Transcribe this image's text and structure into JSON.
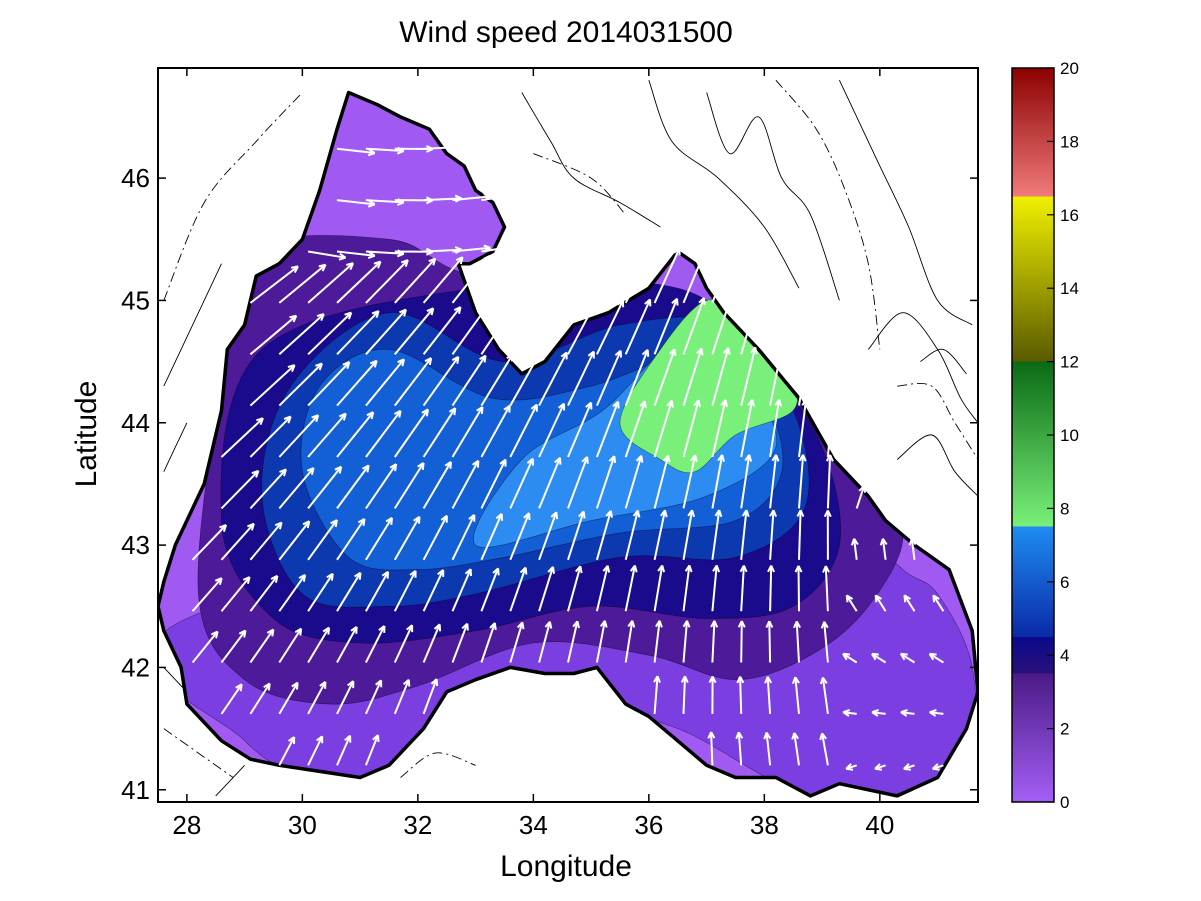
{
  "chart_data": {
    "type": "heatmap",
    "title": "Wind speed 2014031500",
    "xlabel": "Longitude",
    "ylabel": "Latitude",
    "xlim": [
      27.5,
      41.7
    ],
    "ylim": [
      40.9,
      46.9
    ],
    "x_ticks": [
      "28",
      "30",
      "32",
      "34",
      "36",
      "38",
      "40"
    ],
    "y_ticks": [
      "41",
      "42",
      "43",
      "44",
      "45",
      "46"
    ],
    "grid": false,
    "colorbar": {
      "ticks": [
        "0",
        "2",
        "4",
        "6",
        "8",
        "10",
        "12",
        "14",
        "16",
        "18",
        "20"
      ],
      "range": [
        0,
        20
      ],
      "bands": [
        {
          "from": 0,
          "to": 3.5,
          "color_low": "#a45ff5",
          "color_high": "#4a1a86"
        },
        {
          "from": 3.5,
          "to": 4.5,
          "color_low": "#2a0f7a",
          "color_high": "#0a0a8c"
        },
        {
          "from": 4.5,
          "to": 7.5,
          "color_low": "#0a2aa8",
          "color_high": "#1e8cf0"
        },
        {
          "from": 7.5,
          "to": 12,
          "color_low": "#7af07a",
          "color_high": "#0a6a14"
        },
        {
          "from": 12,
          "to": 16.5,
          "color_low": "#5a5a00",
          "color_high": "#f0f000"
        },
        {
          "from": 16.5,
          "to": 20,
          "color_low": "#f07a7a",
          "color_high": "#8c0000"
        }
      ]
    },
    "wind_speed_levels": [
      {
        "level": 1,
        "color": "#7b3ee0",
        "points": [
          [
            28.0,
            42.4
          ],
          [
            29.0,
            41.4
          ],
          [
            31.0,
            40.95
          ],
          [
            33.5,
            41.1
          ],
          [
            35.0,
            41.6
          ],
          [
            36.5,
            41.5
          ],
          [
            38.5,
            41.0
          ],
          [
            40.0,
            40.95
          ],
          [
            41.5,
            41.2
          ],
          [
            41.6,
            42.0
          ],
          [
            41.0,
            42.6
          ],
          [
            40.4,
            42.8
          ],
          [
            39.6,
            43.2
          ],
          [
            39.2,
            43.6
          ]
        ]
      },
      {
        "level": 3,
        "color": "#4d1a9a",
        "points": [
          [
            28.2,
            42.6
          ],
          [
            29.0,
            41.9
          ],
          [
            30.5,
            41.7
          ],
          [
            32.0,
            41.85
          ],
          [
            34.0,
            42.2
          ],
          [
            36.0,
            42.1
          ],
          [
            37.5,
            41.9
          ],
          [
            38.8,
            42.1
          ],
          [
            39.8,
            42.5
          ],
          [
            40.4,
            43.1
          ],
          [
            39.6,
            43.6
          ],
          [
            38.5,
            44.3
          ],
          [
            36.6,
            45.0
          ],
          [
            33.0,
            45.2
          ],
          [
            31.5,
            45.5
          ],
          [
            29.0,
            45.4
          ],
          [
            28.6,
            44.4
          ]
        ]
      },
      {
        "level": 4,
        "color": "#1a0a8c",
        "points": [
          [
            28.6,
            43.2
          ],
          [
            29.5,
            42.4
          ],
          [
            31.0,
            42.2
          ],
          [
            33.0,
            42.3
          ],
          [
            35.0,
            42.5
          ],
          [
            37.0,
            42.4
          ],
          [
            38.5,
            42.5
          ],
          [
            39.3,
            43.0
          ],
          [
            39.0,
            43.8
          ],
          [
            38.0,
            44.5
          ],
          [
            36.5,
            45.1
          ],
          [
            33.0,
            45.1
          ],
          [
            29.3,
            44.6
          ]
        ]
      },
      {
        "level": 5,
        "color": "#0c38b0",
        "points": [
          [
            29.3,
            43.4
          ],
          [
            30.0,
            42.6
          ],
          [
            31.5,
            42.5
          ],
          [
            33.0,
            42.6
          ],
          [
            35.5,
            42.9
          ],
          [
            37.5,
            42.9
          ],
          [
            38.7,
            43.3
          ],
          [
            38.5,
            44.1
          ],
          [
            37.3,
            44.8
          ],
          [
            35.5,
            44.8
          ],
          [
            33.5,
            44.5
          ],
          [
            31.5,
            44.9
          ],
          [
            29.8,
            44.3
          ]
        ]
      },
      {
        "level": 6,
        "color": "#135fd6",
        "points": [
          [
            30.0,
            43.6
          ],
          [
            30.8,
            42.9
          ],
          [
            32.0,
            42.8
          ],
          [
            33.5,
            42.9
          ],
          [
            35.5,
            43.1
          ],
          [
            37.5,
            43.2
          ],
          [
            38.3,
            43.6
          ],
          [
            38.0,
            44.2
          ],
          [
            37.0,
            44.6
          ],
          [
            35.0,
            44.3
          ],
          [
            33.3,
            44.2
          ],
          [
            31.5,
            44.6
          ],
          [
            30.3,
            44.3
          ]
        ]
      },
      {
        "level": 7,
        "color": "#2c8cf2",
        "points": [
          [
            33.0,
            43.0
          ],
          [
            35.0,
            43.2
          ],
          [
            37.0,
            43.4
          ],
          [
            38.2,
            43.8
          ],
          [
            37.6,
            44.4
          ],
          [
            36.6,
            44.7
          ],
          [
            35.2,
            44.1
          ],
          [
            33.8,
            43.7
          ]
        ]
      },
      {
        "level": 8,
        "color": "#78f07a",
        "points": [
          [
            35.5,
            44.0
          ],
          [
            36.2,
            43.7
          ],
          [
            36.8,
            43.6
          ],
          [
            37.5,
            43.9
          ],
          [
            38.5,
            44.1
          ],
          [
            38.4,
            44.4
          ],
          [
            37.6,
            44.8
          ],
          [
            37.0,
            45.0
          ],
          [
            36.2,
            44.6
          ]
        ]
      }
    ]
  }
}
